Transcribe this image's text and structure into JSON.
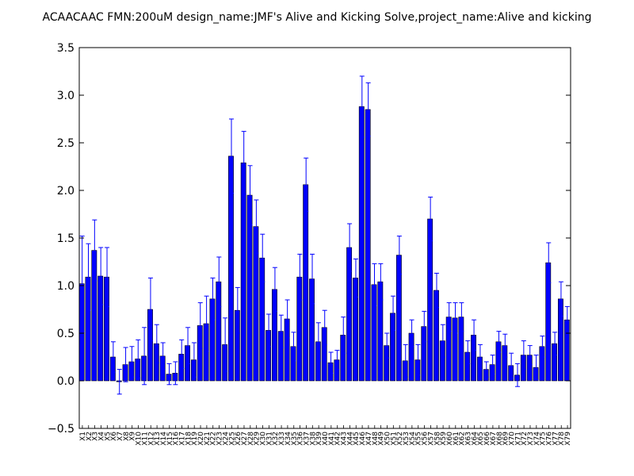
{
  "chart_data": {
    "type": "bar",
    "title": "ACAACAAC  FMN:200uM  design_name:JMF's Alive and Kicking Solve,project_name:Alive and kicking",
    "xlabel": "",
    "ylabel": "",
    "ylim": [
      -0.5,
      3.5
    ],
    "yticks": [
      "−0.5",
      "0.0",
      "0.5",
      "1.0",
      "1.5",
      "2.0",
      "2.5",
      "3.0",
      "3.5"
    ],
    "grid": false,
    "colors": {
      "bar": "#0000ff",
      "edge": "#000000",
      "error": "#0000ff"
    },
    "categories": [
      "X1",
      "X2",
      "X3",
      "X4",
      "X5",
      "X6",
      "X7",
      "X8",
      "X9",
      "X10",
      "X11",
      "X12",
      "X13",
      "X14",
      "X15",
      "X16",
      "X17",
      "X18",
      "X19",
      "X20",
      "X21",
      "X22",
      "X23",
      "X24",
      "X25",
      "X26",
      "X27",
      "X28",
      "X29",
      "X30",
      "X31",
      "X32",
      "X33",
      "X34",
      "X35",
      "X36",
      "X37",
      "X38",
      "X39",
      "X40",
      "X41",
      "X42",
      "X43",
      "X44",
      "X45",
      "X46",
      "X47",
      "X48",
      "X49",
      "X50",
      "X51",
      "X52",
      "X53",
      "X54",
      "X55",
      "X56",
      "X57",
      "X58",
      "X59",
      "X60",
      "X61",
      "X62",
      "X63",
      "X64",
      "X65",
      "X66",
      "X67",
      "X68",
      "X69",
      "X70",
      "X71",
      "X72",
      "X73",
      "X74",
      "X75",
      "X76",
      "X77",
      "X78",
      "X79"
    ],
    "values": [
      1.02,
      1.09,
      1.37,
      1.1,
      1.09,
      0.25,
      -0.01,
      0.17,
      0.2,
      0.23,
      0.26,
      0.75,
      0.39,
      0.26,
      0.07,
      0.08,
      0.28,
      0.37,
      0.22,
      0.58,
      0.6,
      0.86,
      1.04,
      0.38,
      2.36,
      0.74,
      2.29,
      1.95,
      1.62,
      1.29,
      0.53,
      0.96,
      0.52,
      0.65,
      0.36,
      1.09,
      2.06,
      1.07,
      0.41,
      0.56,
      0.19,
      0.22,
      0.48,
      1.4,
      1.08,
      2.88,
      2.85,
      1.01,
      1.04,
      0.37,
      0.71,
      1.32,
      0.21,
      0.5,
      0.22,
      0.57,
      1.7,
      0.95,
      0.42,
      0.67,
      0.66,
      0.67,
      0.3,
      0.48,
      0.25,
      0.12,
      0.17,
      0.41,
      0.37,
      0.16,
      0.06,
      0.27,
      0.27,
      0.14,
      0.36,
      1.24,
      0.39,
      0.86,
      0.64
    ],
    "errors": [
      0.5,
      0.35,
      0.32,
      0.3,
      0.31,
      0.16,
      0.13,
      0.18,
      0.16,
      0.2,
      0.3,
      0.33,
      0.2,
      0.14,
      0.11,
      0.12,
      0.15,
      0.19,
      0.18,
      0.24,
      0.29,
      0.22,
      0.26,
      0.28,
      0.39,
      0.24,
      0.33,
      0.31,
      0.28,
      0.25,
      0.17,
      0.23,
      0.17,
      0.2,
      0.15,
      0.24,
      0.28,
      0.26,
      0.2,
      0.18,
      0.11,
      0.1,
      0.19,
      0.25,
      0.2,
      0.32,
      0.28,
      0.22,
      0.19,
      0.13,
      0.18,
      0.2,
      0.17,
      0.14,
      0.16,
      0.16,
      0.23,
      0.18,
      0.17,
      0.15,
      0.16,
      0.15,
      0.12,
      0.16,
      0.13,
      0.08,
      0.1,
      0.11,
      0.12,
      0.13,
      0.12,
      0.15,
      0.1,
      0.13,
      0.11,
      0.21,
      0.12,
      0.18,
      0.14
    ]
  }
}
